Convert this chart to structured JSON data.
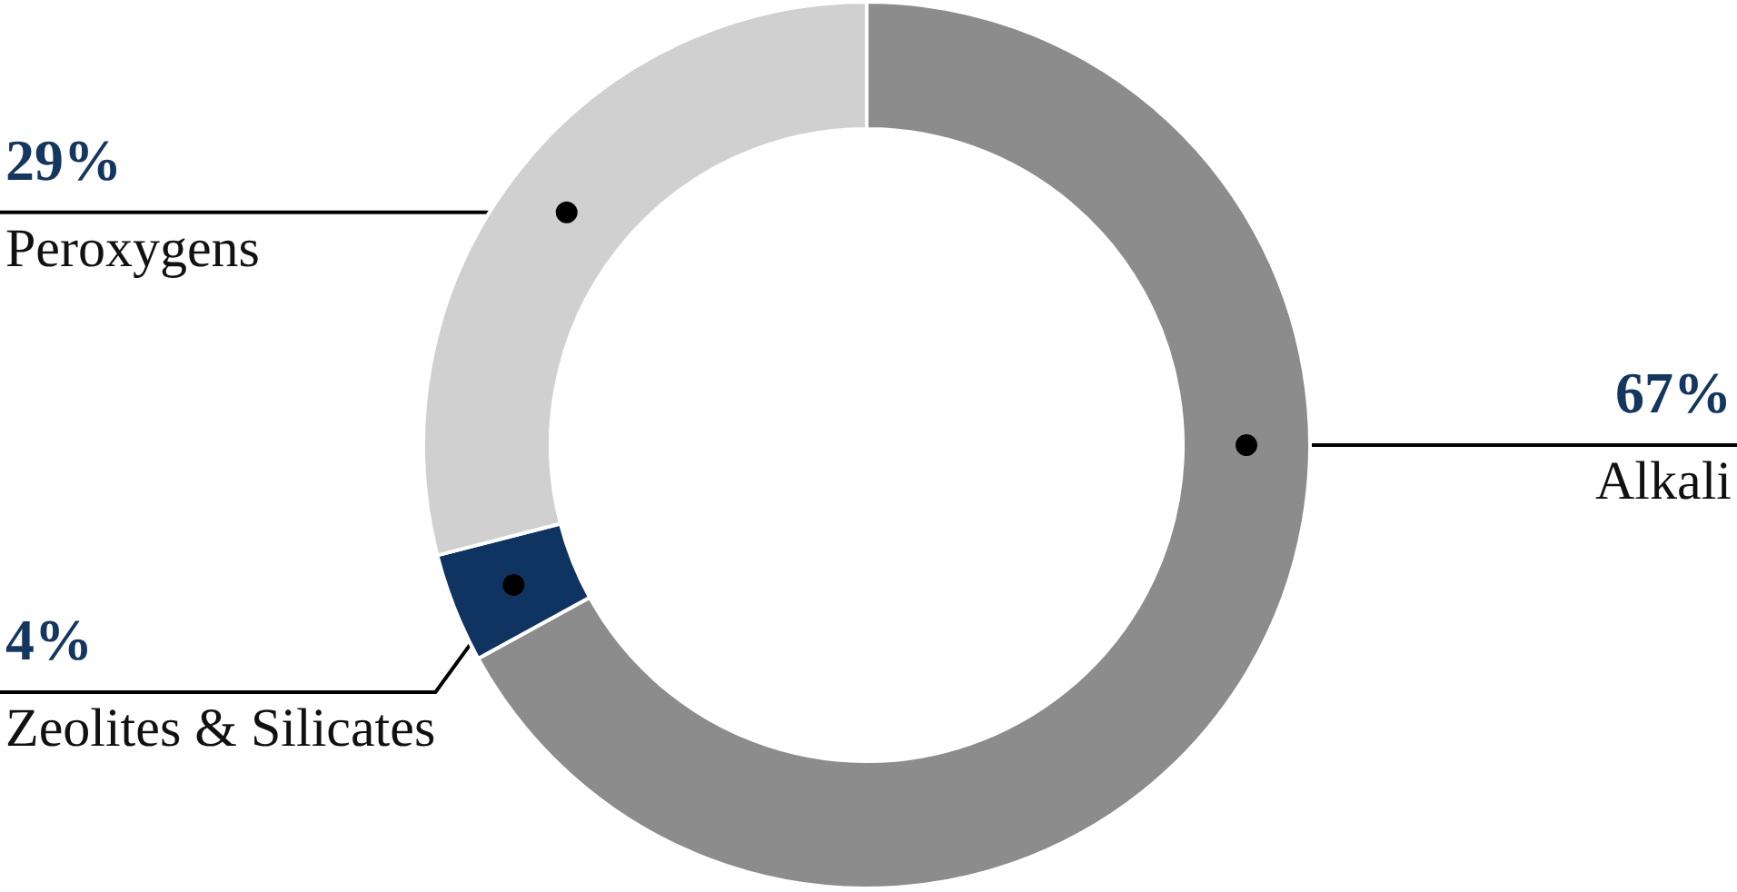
{
  "chart_data": {
    "type": "donut",
    "categories": [
      "Alkali",
      "Zeolites & Silicates",
      "Peroxygens"
    ],
    "values": [
      67,
      4,
      29
    ],
    "colors": [
      "#8c8c8c",
      "#0f3462",
      "#d0d0d0"
    ],
    "value_labels": [
      "67%",
      "4%",
      "29%"
    ]
  }
}
